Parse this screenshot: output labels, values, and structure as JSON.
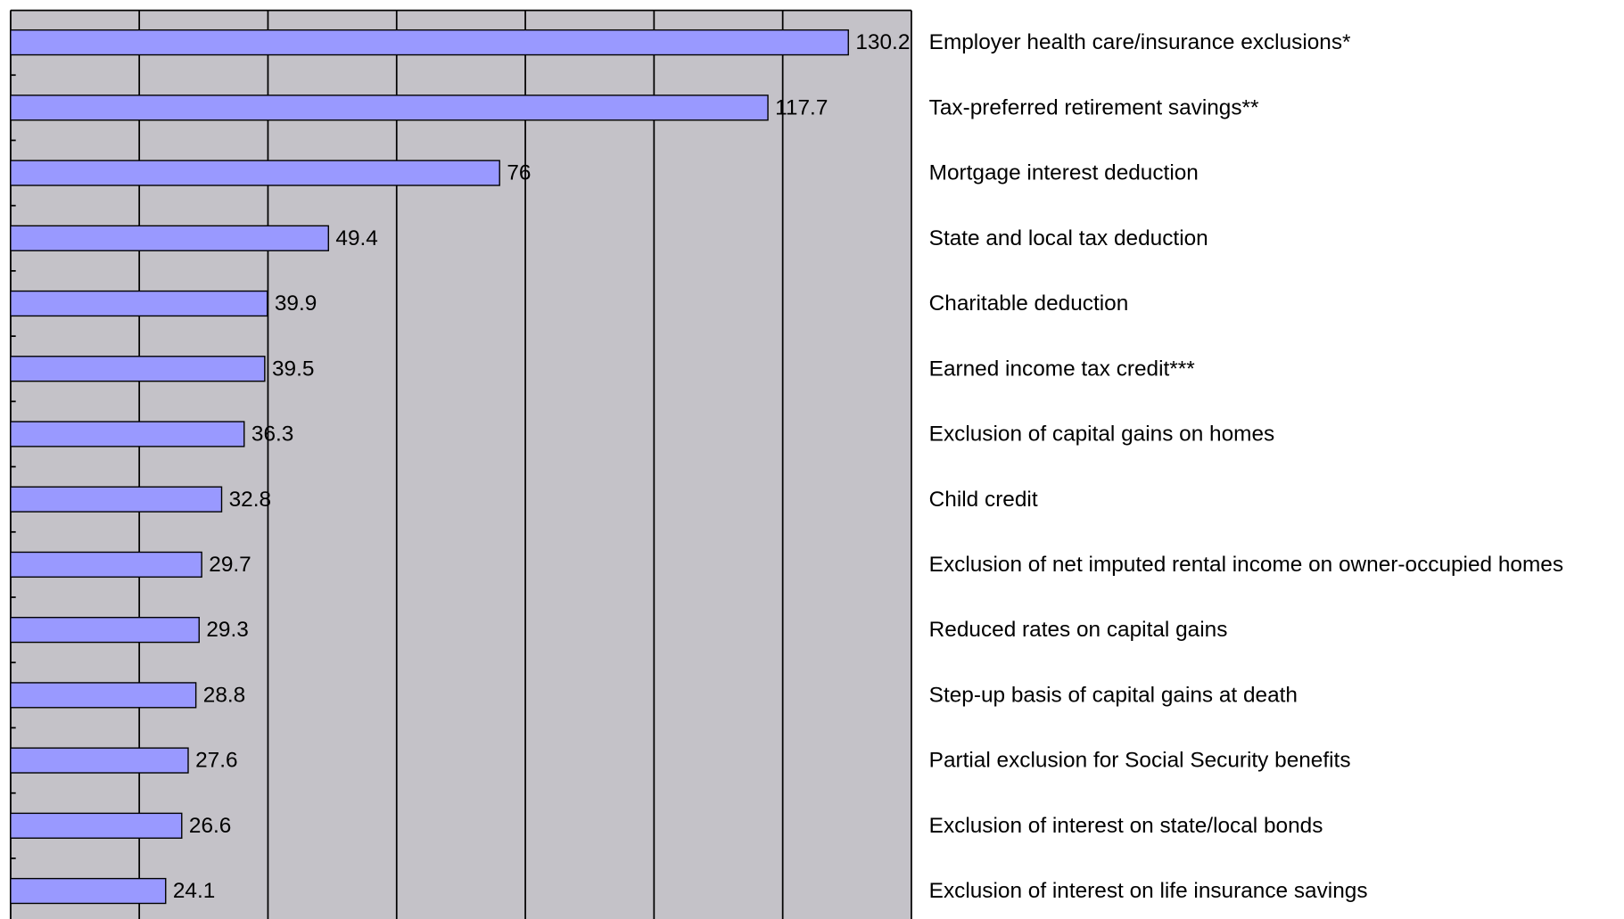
{
  "chart_data": {
    "type": "bar",
    "orientation": "horizontal",
    "categories": [
      "Employer health care/insurance exclusions*",
      "Tax-preferred retirement savings**",
      "Mortgage interest deduction",
      "State and local tax deduction",
      "Charitable deduction",
      "Earned income tax credit***",
      "Exclusion of capital gains on homes",
      "Child credit",
      "Exclusion of net imputed rental income on owner-occupied homes",
      "Reduced rates on capital gains",
      "Step-up basis of capital gains at death",
      "Partial exclusion for Social Security benefits",
      "Exclusion of interest on state/local bonds",
      "Exclusion of interest on life insurance savings"
    ],
    "values": [
      130.2,
      117.7,
      76,
      49.4,
      39.9,
      39.5,
      36.3,
      32.8,
      29.7,
      29.3,
      28.8,
      27.6,
      26.6,
      24.1
    ],
    "color": "#9999ff",
    "xlim": [
      0,
      140
    ],
    "xticks": [
      0,
      20,
      40,
      60,
      80,
      100,
      120,
      140
    ],
    "grid": true
  }
}
